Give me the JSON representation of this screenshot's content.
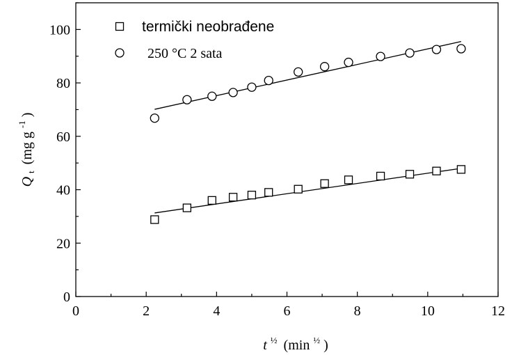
{
  "chart_data": {
    "type": "scatter",
    "xlabel": {
      "var": "t",
      "unit": "(min",
      "sup": "½",
      "close": ")"
    },
    "ylabel": {
      "var": "Q",
      "sub": "t",
      "unit": "(mg g",
      "sup": "-1",
      "close": ")"
    },
    "xlim": [
      0,
      12
    ],
    "ylim": [
      0,
      110
    ],
    "xticks": [
      0,
      2,
      4,
      6,
      8,
      10,
      12
    ],
    "yticks": [
      0,
      20,
      40,
      60,
      80,
      100
    ],
    "grid": false,
    "legend_position": "top-left",
    "series": [
      {
        "name": "termički neobrađene",
        "marker": "square",
        "x": [
          2.24,
          3.16,
          3.87,
          4.47,
          5.0,
          5.48,
          6.32,
          7.07,
          7.75,
          8.66,
          9.49,
          10.25,
          10.95
        ],
        "y": [
          28.8,
          33.2,
          36.0,
          37.2,
          38.0,
          39.0,
          40.2,
          42.3,
          43.7,
          45.1,
          45.8,
          47.0,
          47.6
        ],
        "fit": {
          "x": [
            2.24,
            10.95
          ],
          "y": [
            31.3,
            48.0
          ]
        }
      },
      {
        "name": "250 °C 2 sata",
        "marker": "circle",
        "x": [
          2.24,
          3.16,
          3.87,
          4.47,
          5.0,
          5.48,
          6.32,
          7.07,
          7.75,
          8.66,
          9.49,
          10.25,
          10.95
        ],
        "y": [
          66.8,
          73.7,
          75.0,
          76.4,
          78.4,
          80.9,
          84.1,
          86.1,
          87.7,
          89.9,
          91.2,
          92.5,
          92.8
        ],
        "fit": {
          "x": [
            2.24,
            10.95
          ],
          "y": [
            70.1,
            95.5
          ]
        }
      }
    ]
  },
  "colors": {
    "axis": "#000000",
    "marker": "#000000",
    "fit": "#000000",
    "ylabel": "#8b3a1a"
  }
}
